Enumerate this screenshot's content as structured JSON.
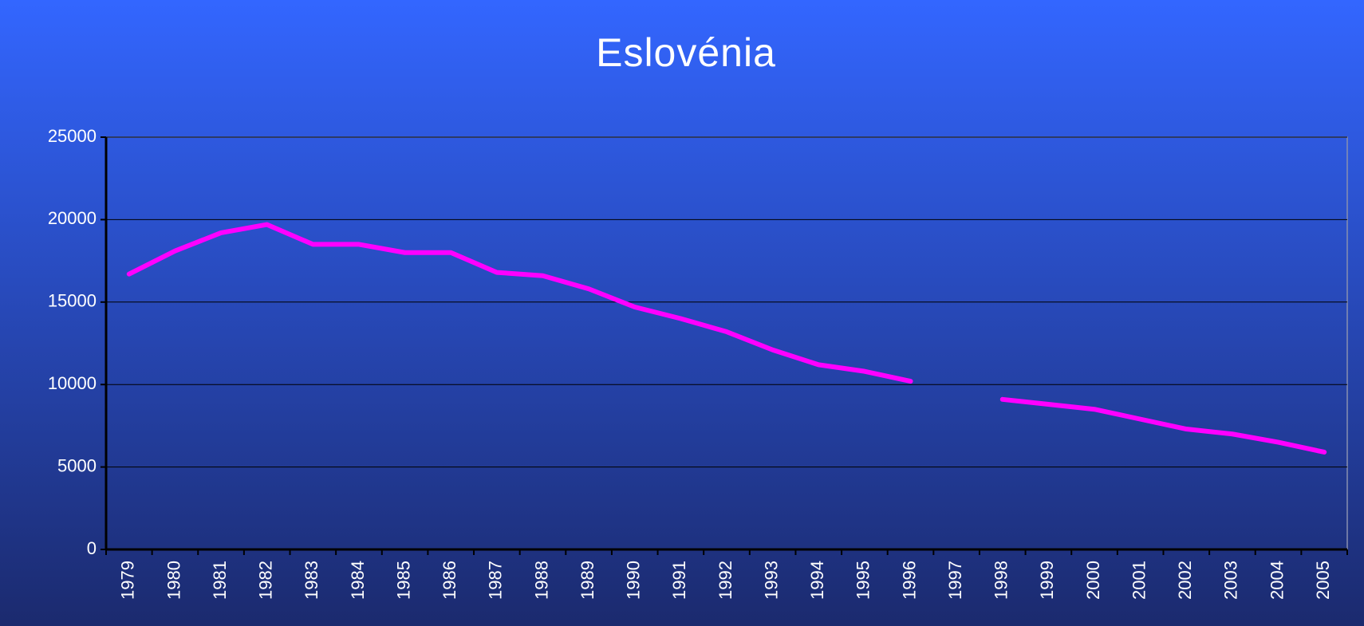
{
  "chart_data": {
    "type": "line",
    "title": "Eslovénia",
    "categories": [
      "1979",
      "1980",
      "1981",
      "1982",
      "1983",
      "1984",
      "1985",
      "1986",
      "1987",
      "1988",
      "1989",
      "1990",
      "1991",
      "1992",
      "1993",
      "1994",
      "1995",
      "1996",
      "1997",
      "1998",
      "1999",
      "2000",
      "2001",
      "2002",
      "2003",
      "2004",
      "2005"
    ],
    "series": [
      {
        "color": "#ff00ff",
        "values": [
          16700,
          18100,
          19200,
          19700,
          18500,
          18500,
          18000,
          18000,
          16800,
          16600,
          15800,
          14700,
          14000,
          13200,
          12100,
          11200,
          10800,
          10200,
          null,
          9100,
          8800,
          8500,
          7900,
          7300,
          7000,
          6500,
          5900
        ]
      }
    ],
    "ylim": [
      0,
      25000
    ],
    "yticks": [
      0,
      5000,
      10000,
      15000,
      20000,
      25000
    ],
    "grid": true
  }
}
